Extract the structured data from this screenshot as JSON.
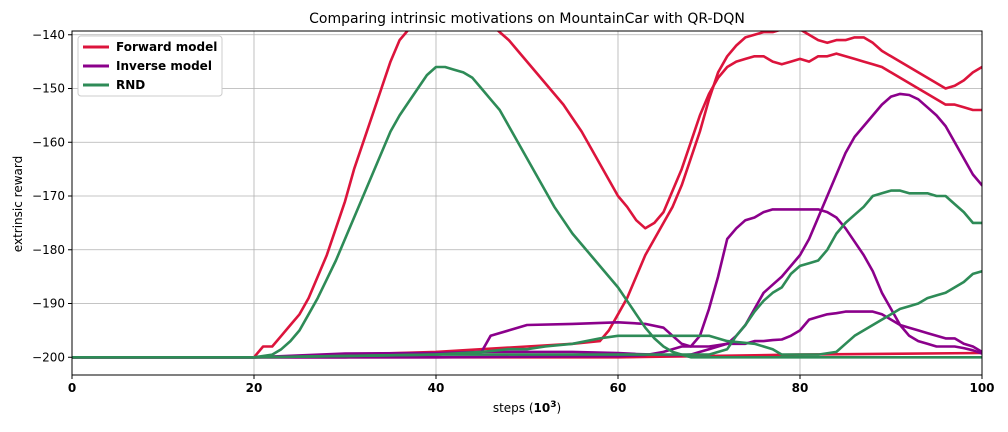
{
  "chart_data": {
    "type": "line",
    "title": "Comparing intrinsic motivations on MountainCar with QR-DQN",
    "xlabel_prefix": "steps (",
    "xlabel_math": "10",
    "xlabel_sup": "3",
    "xlabel_suffix": ")",
    "ylabel": "extrinsic reward",
    "xlim": [
      0,
      100
    ],
    "ylim": [
      -203.3,
      -139.3
    ],
    "xticks": [
      0,
      20,
      40,
      60,
      80,
      100
    ],
    "yticks": [
      -200,
      -190,
      -180,
      -170,
      -160,
      -150,
      -140
    ],
    "grid": true,
    "legend_position": "top-left",
    "legend": [
      {
        "name": "Forward model",
        "color": "#dc143c"
      },
      {
        "name": "Inverse model",
        "color": "#8b008b"
      },
      {
        "name": "RND",
        "color": "#2e8b57"
      }
    ],
    "lines": [
      {
        "series": "Forward model",
        "color": "#dc143c",
        "x": [
          0,
          10,
          20,
          20.5,
          21,
          22,
          23,
          24,
          25,
          26,
          27,
          28,
          29,
          30,
          31,
          32,
          33,
          34,
          35,
          36,
          37,
          38,
          39,
          40,
          41,
          42,
          43,
          44,
          45,
          46,
          47,
          48,
          49,
          50,
          51,
          52,
          53,
          54,
          55,
          56,
          57,
          58,
          59,
          60,
          61,
          62,
          63,
          64,
          65,
          66,
          67,
          68,
          69,
          70,
          71,
          72,
          73,
          74,
          75,
          76,
          77,
          78,
          79,
          80,
          81,
          82,
          83,
          84,
          85,
          86,
          87,
          88,
          89,
          90,
          91,
          92,
          93,
          94,
          95,
          96,
          97,
          98,
          99,
          100
        ],
        "y": [
          -200,
          -200,
          -200,
          -199,
          -198,
          -198,
          -196,
          -194,
          -192,
          -189,
          -185,
          -181,
          -176,
          -171,
          -165,
          -160,
          -155,
          -150,
          -145,
          -141,
          -139,
          -137,
          -136,
          -135,
          -134,
          -134.5,
          -135.5,
          -136.5,
          -137,
          -138,
          -139.5,
          -141,
          -143,
          -145,
          -147,
          -149,
          -151,
          -153,
          -155.5,
          -158,
          -161,
          -164,
          -167,
          -170,
          -172,
          -174.5,
          -176,
          -175,
          -173,
          -169,
          -165,
          -160,
          -155,
          -151,
          -148,
          -146,
          -145,
          -144.5,
          -144,
          -144,
          -145,
          -145.5,
          -145,
          -144.5,
          -145,
          -144,
          -144,
          -143.5,
          -144,
          -144.5,
          -145,
          -145.5,
          -146,
          -147,
          -148,
          -149,
          -150,
          -151,
          -152,
          -153,
          -153,
          -153.5,
          -154,
          -154
        ]
      },
      {
        "series": "Forward model",
        "color": "#dc143c",
        "x": [
          0,
          20,
          30,
          40,
          45,
          50,
          55,
          58,
          59,
          60,
          61,
          62,
          63,
          64,
          65,
          66,
          67,
          68,
          69,
          70,
          71,
          72,
          73,
          74,
          75,
          76,
          77,
          78,
          79,
          80,
          81,
          82,
          83,
          84,
          85,
          86,
          87,
          88,
          89,
          90,
          91,
          92,
          93,
          94,
          95,
          96,
          97,
          98,
          99,
          100
        ],
        "y": [
          -200,
          -200,
          -199.5,
          -199,
          -198.5,
          -198,
          -197.5,
          -197,
          -195,
          -192,
          -189,
          -185,
          -181,
          -178,
          -175,
          -172,
          -168,
          -163,
          -158,
          -152,
          -147,
          -144,
          -142,
          -140.5,
          -140,
          -139.5,
          -139.5,
          -139,
          -138.5,
          -139,
          -140,
          -141,
          -141.5,
          -141,
          -141,
          -140.5,
          -140.5,
          -141.5,
          -143,
          -144,
          -145,
          -146,
          -147,
          -148,
          -149,
          -150,
          -149.5,
          -148.5,
          -147,
          -146
        ]
      },
      {
        "series": "Forward model",
        "color": "#dc143c",
        "x": [
          0,
          40,
          60,
          80,
          100
        ],
        "y": [
          -200,
          -200,
          -200,
          -199.5,
          -199.2
        ]
      },
      {
        "series": "Inverse model",
        "color": "#8b008b",
        "x": [
          0,
          20,
          30,
          40,
          45,
          50,
          55,
          60,
          62,
          64,
          66,
          67,
          68,
          69,
          70,
          71,
          72,
          73,
          74,
          75,
          76,
          77,
          78,
          79,
          80,
          81,
          82,
          83,
          84,
          85,
          86,
          87,
          88,
          89,
          90,
          91,
          92,
          93,
          94,
          95,
          96,
          97,
          98,
          99,
          100
        ],
        "y": [
          -200,
          -200,
          -199.3,
          -199.2,
          -199,
          -199,
          -199,
          -199.2,
          -199.4,
          -199.5,
          -199.6,
          -199.6,
          -199.5,
          -199,
          -198.5,
          -198,
          -197.5,
          -196,
          -194,
          -191,
          -188,
          -186.5,
          -185,
          -183,
          -181,
          -178,
          -174,
          -170,
          -166,
          -162,
          -159,
          -157,
          -155,
          -153,
          -151.5,
          -151,
          -151.2,
          -152,
          -153.5,
          -155,
          -157,
          -160,
          -163,
          -166,
          -168
        ]
      },
      {
        "series": "Inverse model",
        "color": "#8b008b",
        "x": [
          0,
          20,
          30,
          40,
          45,
          46,
          48,
          50,
          55,
          60,
          63,
          65,
          66,
          67,
          68,
          69,
          70,
          71,
          72,
          73,
          74,
          75,
          76,
          77,
          78,
          79,
          80,
          81,
          82,
          83,
          84,
          85,
          86,
          87,
          88,
          89,
          90,
          91,
          92,
          93,
          94,
          95,
          96,
          97,
          98,
          99,
          100
        ],
        "y": [
          -200,
          -200,
          -200,
          -199.5,
          -199,
          -196,
          -195,
          -194,
          -193.8,
          -193.5,
          -193.8,
          -194.5,
          -196,
          -197.5,
          -198,
          -196,
          -191,
          -185,
          -178,
          -176,
          -174.5,
          -174,
          -173,
          -172.5,
          -172.5,
          -172.5,
          -172.5,
          -172.5,
          -172.5,
          -173,
          -174,
          -176,
          -178.5,
          -181,
          -184,
          -188,
          -191,
          -194,
          -196,
          -197,
          -197.5,
          -198,
          -198,
          -198,
          -198.3,
          -198.7,
          -199.3
        ]
      },
      {
        "series": "Inverse model",
        "color": "#8b008b",
        "x": [
          0,
          20,
          40,
          60,
          63,
          65,
          67,
          68,
          70,
          72,
          74,
          75,
          76,
          77,
          78,
          79,
          80,
          81,
          82,
          83,
          84,
          85,
          86,
          87,
          88,
          89,
          90,
          91,
          92,
          93,
          94,
          95,
          96,
          97,
          98,
          99,
          100
        ],
        "y": [
          -200,
          -200,
          -200,
          -199.8,
          -199.6,
          -199,
          -198,
          -198,
          -198,
          -197.5,
          -197.5,
          -197,
          -197,
          -196.8,
          -196.7,
          -196,
          -195,
          -193,
          -192.5,
          -192,
          -191.8,
          -191.5,
          -191.5,
          -191.5,
          -191.5,
          -192,
          -193,
          -194,
          -194.5,
          -195,
          -195.5,
          -196,
          -196.5,
          -196.5,
          -197.5,
          -198,
          -199
        ]
      },
      {
        "series": "RND",
        "color": "#2e8b57",
        "x": [
          0,
          20,
          22,
          23,
          24,
          25,
          26,
          27,
          28,
          29,
          30,
          31,
          32,
          33,
          34,
          35,
          36,
          37,
          38,
          39,
          40,
          41,
          42,
          43,
          44,
          45,
          46,
          47,
          48,
          49,
          50,
          51,
          52,
          53,
          54,
          55,
          56,
          57,
          58,
          59,
          60,
          61,
          62,
          63,
          64,
          65,
          66,
          67,
          68,
          70,
          75,
          80,
          90,
          100
        ],
        "y": [
          -200,
          -200,
          -199.5,
          -198.5,
          -197,
          -195,
          -192,
          -189,
          -185.5,
          -182,
          -178,
          -174,
          -170,
          -166,
          -162,
          -158,
          -155,
          -152.5,
          -150,
          -147.5,
          -146,
          -146,
          -146.5,
          -147,
          -148,
          -150,
          -152,
          -154,
          -157,
          -160,
          -163,
          -166,
          -169,
          -172,
          -174.5,
          -177,
          -179,
          -181,
          -183,
          -185,
          -187,
          -189.5,
          -192,
          -194.5,
          -196.5,
          -198,
          -199,
          -199.5,
          -200,
          -200,
          -200,
          -200,
          -200,
          -200
        ]
      },
      {
        "series": "RND",
        "color": "#2e8b57",
        "x": [
          0,
          20,
          40,
          50,
          55,
          60,
          65,
          70,
          72,
          73,
          74,
          75,
          76,
          77,
          78,
          79,
          80,
          81,
          82,
          83,
          84,
          85,
          86,
          87,
          88,
          89,
          90,
          91,
          92,
          93,
          94,
          95,
          96,
          97,
          98,
          99,
          100
        ],
        "y": [
          -200,
          -200,
          -199.5,
          -199.5,
          -199.5,
          -199.5,
          -199.5,
          -199.5,
          -198.5,
          -196,
          -194,
          -191.5,
          -189.5,
          -188,
          -187,
          -184.5,
          -183,
          -182.5,
          -182,
          -180,
          -177,
          -175,
          -173.5,
          -172,
          -170,
          -169.5,
          -169,
          -169,
          -169.5,
          -169.5,
          -169.5,
          -170,
          -170,
          -171.5,
          -173,
          -175,
          -175
        ]
      },
      {
        "series": "RND",
        "color": "#2e8b57",
        "x": [
          0,
          20,
          40,
          45,
          48,
          50,
          52,
          55,
          58,
          60,
          62,
          65,
          68,
          70,
          72,
          75,
          77,
          78,
          80,
          82,
          84,
          85,
          86,
          87,
          88,
          89,
          90,
          91,
          92,
          93,
          94,
          95,
          96,
          97,
          98,
          99,
          100
        ],
        "y": [
          -200,
          -200,
          -199.5,
          -199,
          -198.5,
          -198.5,
          -198,
          -197.5,
          -196.5,
          -196,
          -196,
          -196,
          -196,
          -196,
          -197,
          -197.5,
          -198.5,
          -199.5,
          -199.5,
          -199.5,
          -199,
          -197.5,
          -196,
          -195,
          -194,
          -193,
          -192,
          -191,
          -190.5,
          -190,
          -189,
          -188.5,
          -188,
          -187,
          -186,
          -184.5,
          -184
        ]
      }
    ]
  }
}
